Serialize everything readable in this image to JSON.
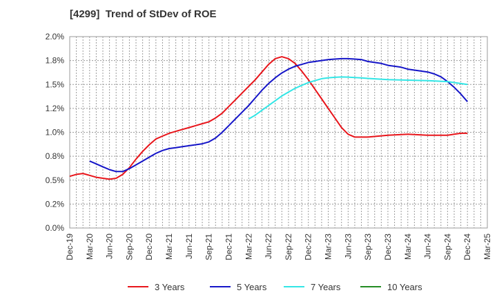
{
  "chart_data": {
    "type": "line",
    "title": "[4299]  Trend of StDev of ROE",
    "xlabel": "",
    "ylabel": "",
    "x_ticks": [
      "Dec-19",
      "Mar-20",
      "Jun-20",
      "Sep-20",
      "Dec-20",
      "Mar-21",
      "Jun-21",
      "Sep-21",
      "Dec-21",
      "Mar-22",
      "Jun-22",
      "Sep-22",
      "Dec-22",
      "Mar-23",
      "Jun-23",
      "Sep-23",
      "Dec-23",
      "Mar-24",
      "Jun-24",
      "Sep-24",
      "Dec-24",
      "Mar-25"
    ],
    "y_ticks": [
      "0.0%",
      "0.2%",
      "0.5%",
      "0.8%",
      "1.0%",
      "1.2%",
      "1.5%",
      "1.8%",
      "2.0%"
    ],
    "ylim": [
      0,
      2.0
    ],
    "grid": true,
    "legend_position": "bottom",
    "series": [
      {
        "name": "3 Years",
        "color": "#e8141a",
        "points": [
          [
            "Dec-19",
            0.54
          ],
          [
            "Jan-20",
            0.56
          ],
          [
            "Feb-20",
            0.57
          ],
          [
            "Mar-20",
            0.55
          ],
          [
            "Apr-20",
            0.53
          ],
          [
            "May-20",
            0.52
          ],
          [
            "Jun-20",
            0.51
          ],
          [
            "Jul-20",
            0.52
          ],
          [
            "Aug-20",
            0.56
          ],
          [
            "Sep-20",
            0.63
          ],
          [
            "Oct-20",
            0.72
          ],
          [
            "Nov-20",
            0.8
          ],
          [
            "Dec-20",
            0.87
          ],
          [
            "Jan-21",
            0.93
          ],
          [
            "Feb-21",
            0.96
          ],
          [
            "Mar-21",
            0.99
          ],
          [
            "Apr-21",
            1.01
          ],
          [
            "May-21",
            1.03
          ],
          [
            "Jun-21",
            1.05
          ],
          [
            "Jul-21",
            1.07
          ],
          [
            "Aug-21",
            1.09
          ],
          [
            "Sep-21",
            1.11
          ],
          [
            "Oct-21",
            1.15
          ],
          [
            "Nov-21",
            1.2
          ],
          [
            "Dec-21",
            1.27
          ],
          [
            "Jan-22",
            1.34
          ],
          [
            "Feb-22",
            1.41
          ],
          [
            "Mar-22",
            1.48
          ],
          [
            "Apr-22",
            1.55
          ],
          [
            "May-22",
            1.63
          ],
          [
            "Jun-22",
            1.71
          ],
          [
            "Jul-22",
            1.77
          ],
          [
            "Aug-22",
            1.79
          ],
          [
            "Sep-22",
            1.77
          ],
          [
            "Oct-22",
            1.72
          ],
          [
            "Nov-22",
            1.64
          ],
          [
            "Dec-22",
            1.55
          ],
          [
            "Jan-23",
            1.45
          ],
          [
            "Feb-23",
            1.35
          ],
          [
            "Mar-23",
            1.25
          ],
          [
            "Apr-23",
            1.15
          ],
          [
            "May-23",
            1.05
          ],
          [
            "Jun-23",
            0.98
          ],
          [
            "Jul-23",
            0.95
          ],
          [
            "Aug-23",
            0.95
          ],
          [
            "Sep-23",
            0.95
          ],
          [
            "Dec-23",
            0.97
          ],
          [
            "Mar-24",
            0.98
          ],
          [
            "Jun-24",
            0.97
          ],
          [
            "Sep-24",
            0.97
          ],
          [
            "Oct-24",
            0.98
          ],
          [
            "Nov-24",
            0.99
          ],
          [
            "Dec-24",
            0.99
          ]
        ]
      },
      {
        "name": "5 Years",
        "color": "#1414c8",
        "points": [
          [
            "Mar-20",
            0.7
          ],
          [
            "Apr-20",
            0.67
          ],
          [
            "May-20",
            0.64
          ],
          [
            "Jun-20",
            0.61
          ],
          [
            "Jul-20",
            0.59
          ],
          [
            "Aug-20",
            0.59
          ],
          [
            "Sep-20",
            0.62
          ],
          [
            "Oct-20",
            0.66
          ],
          [
            "Nov-20",
            0.7
          ],
          [
            "Dec-20",
            0.74
          ],
          [
            "Jan-21",
            0.78
          ],
          [
            "Feb-21",
            0.81
          ],
          [
            "Mar-21",
            0.83
          ],
          [
            "Apr-21",
            0.84
          ],
          [
            "May-21",
            0.85
          ],
          [
            "Jun-21",
            0.86
          ],
          [
            "Jul-21",
            0.87
          ],
          [
            "Aug-21",
            0.88
          ],
          [
            "Sep-21",
            0.9
          ],
          [
            "Oct-21",
            0.94
          ],
          [
            "Nov-21",
            1.0
          ],
          [
            "Dec-21",
            1.07
          ],
          [
            "Jan-22",
            1.14
          ],
          [
            "Feb-22",
            1.21
          ],
          [
            "Mar-22",
            1.28
          ],
          [
            "Apr-22",
            1.36
          ],
          [
            "May-22",
            1.44
          ],
          [
            "Jun-22",
            1.51
          ],
          [
            "Jul-22",
            1.57
          ],
          [
            "Aug-22",
            1.62
          ],
          [
            "Sep-22",
            1.66
          ],
          [
            "Oct-22",
            1.69
          ],
          [
            "Nov-22",
            1.71
          ],
          [
            "Dec-22",
            1.73
          ],
          [
            "Jan-23",
            1.74
          ],
          [
            "Feb-23",
            1.75
          ],
          [
            "Mar-23",
            1.76
          ],
          [
            "Apr-23",
            1.765
          ],
          [
            "May-23",
            1.77
          ],
          [
            "Jun-23",
            1.77
          ],
          [
            "Jul-23",
            1.765
          ],
          [
            "Aug-23",
            1.76
          ],
          [
            "Sep-23",
            1.74
          ],
          [
            "Oct-23",
            1.73
          ],
          [
            "Nov-23",
            1.72
          ],
          [
            "Dec-23",
            1.7
          ],
          [
            "Jan-24",
            1.69
          ],
          [
            "Feb-24",
            1.68
          ],
          [
            "Mar-24",
            1.66
          ],
          [
            "Apr-24",
            1.65
          ],
          [
            "May-24",
            1.64
          ],
          [
            "Jun-24",
            1.63
          ],
          [
            "Jul-24",
            1.61
          ],
          [
            "Aug-24",
            1.58
          ],
          [
            "Sep-24",
            1.53
          ],
          [
            "Oct-24",
            1.47
          ],
          [
            "Nov-24",
            1.4
          ],
          [
            "Dec-24",
            1.32
          ]
        ]
      },
      {
        "name": "7 Years",
        "color": "#32e6e6",
        "points": [
          [
            "Mar-22",
            1.14
          ],
          [
            "Apr-22",
            1.18
          ],
          [
            "May-22",
            1.23
          ],
          [
            "Jun-22",
            1.28
          ],
          [
            "Jul-22",
            1.33
          ],
          [
            "Aug-22",
            1.38
          ],
          [
            "Sep-22",
            1.42
          ],
          [
            "Oct-22",
            1.46
          ],
          [
            "Nov-22",
            1.49
          ],
          [
            "Dec-22",
            1.52
          ],
          [
            "Jan-23",
            1.54
          ],
          [
            "Feb-23",
            1.56
          ],
          [
            "Mar-23",
            1.57
          ],
          [
            "Apr-23",
            1.575
          ],
          [
            "May-23",
            1.578
          ],
          [
            "Jun-23",
            1.577
          ],
          [
            "Jul-23",
            1.572
          ],
          [
            "Aug-23",
            1.568
          ],
          [
            "Sep-23",
            1.563
          ],
          [
            "Dec-23",
            1.55
          ],
          [
            "Mar-24",
            1.545
          ],
          [
            "Jun-24",
            1.54
          ],
          [
            "Sep-24",
            1.53
          ],
          [
            "Oct-24",
            1.52
          ],
          [
            "Nov-24",
            1.51
          ],
          [
            "Dec-24",
            1.5
          ]
        ]
      },
      {
        "name": "10 Years",
        "color": "#228b22",
        "points": []
      }
    ]
  }
}
